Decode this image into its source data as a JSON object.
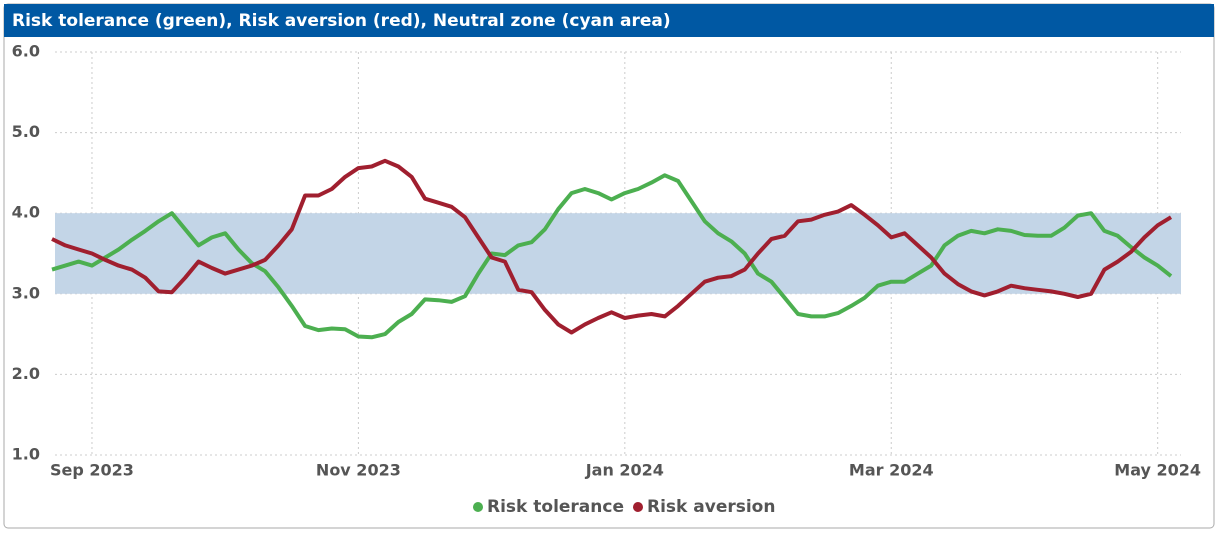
{
  "chart_data": {
    "type": "line",
    "title": "Risk tolerance (green), Risk aversion (red), Neutral zone (cyan area)",
    "categories": [
      null,
      null,
      null,
      "Sep 2023",
      null,
      null,
      null,
      null,
      null,
      null,
      null,
      null,
      null,
      null,
      null,
      null,
      null,
      null,
      null,
      null,
      null,
      null,
      null,
      "Nov 2023",
      null,
      null,
      null,
      null,
      null,
      null,
      null,
      null,
      null,
      null,
      null,
      null,
      null,
      null,
      null,
      null,
      null,
      null,
      null,
      "Jan 2024",
      null,
      null,
      null,
      null,
      null,
      null,
      null,
      null,
      null,
      null,
      null,
      null,
      null,
      null,
      null,
      null,
      null,
      null,
      null,
      "Mar 2024",
      null,
      null,
      null,
      null,
      null,
      null,
      null,
      null,
      null,
      null,
      null,
      null,
      null,
      null,
      null,
      null,
      null,
      null,
      null,
      "May 2024",
      null
    ],
    "series": [
      {
        "name": "Risk tolerance",
        "color": "#4caf50",
        "values": [
          3.3,
          3.35,
          3.4,
          3.35,
          3.45,
          3.55,
          3.67,
          3.78,
          3.9,
          4.0,
          3.8,
          3.6,
          3.7,
          3.75,
          3.55,
          3.38,
          3.28,
          3.08,
          2.85,
          2.6,
          2.55,
          2.57,
          2.56,
          2.47,
          2.46,
          2.5,
          2.65,
          2.75,
          2.93,
          2.92,
          2.9,
          2.97,
          3.25,
          3.5,
          3.48,
          3.6,
          3.64,
          3.8,
          4.05,
          4.25,
          4.3,
          4.25,
          4.17,
          4.25,
          4.3,
          4.38,
          4.47,
          4.4,
          4.15,
          3.9,
          3.75,
          3.65,
          3.5,
          3.25,
          3.15,
          2.95,
          2.75,
          2.72,
          2.72,
          2.76,
          2.85,
          2.95,
          3.1,
          3.15,
          3.15,
          3.25,
          3.35,
          3.6,
          3.72,
          3.78,
          3.75,
          3.8,
          3.78,
          3.73,
          3.72,
          3.72,
          3.82,
          3.97,
          4.0,
          3.78,
          3.72,
          3.58,
          3.45,
          3.35,
          3.22
        ]
      },
      {
        "name": "Risk aversion",
        "color": "#a01f2f",
        "values": [
          3.68,
          3.6,
          3.55,
          3.5,
          3.42,
          3.35,
          3.3,
          3.2,
          3.03,
          3.02,
          3.2,
          3.4,
          3.32,
          3.25,
          3.3,
          3.35,
          3.42,
          3.6,
          3.8,
          4.22,
          4.22,
          4.3,
          4.45,
          4.56,
          4.58,
          4.65,
          4.58,
          4.45,
          4.18,
          4.13,
          4.08,
          3.95,
          3.7,
          3.45,
          3.4,
          3.05,
          3.02,
          2.8,
          2.62,
          2.52,
          2.62,
          2.7,
          2.77,
          2.7,
          2.73,
          2.75,
          2.72,
          2.85,
          3.0,
          3.15,
          3.2,
          3.22,
          3.3,
          3.5,
          3.68,
          3.72,
          3.9,
          3.92,
          3.98,
          4.02,
          4.1,
          3.98,
          3.85,
          3.7,
          3.75,
          3.6,
          3.45,
          3.25,
          3.12,
          3.03,
          2.98,
          3.03,
          3.1,
          3.07,
          3.05,
          3.03,
          3.0,
          2.96,
          3.0,
          3.3,
          3.4,
          3.52,
          3.7,
          3.85,
          3.95
        ]
      }
    ],
    "band": [
      3,
      4
    ],
    "band_color": "#c3d5e7",
    "ylim": [
      1,
      6
    ],
    "yticks": [
      {
        "value": 1,
        "label": "1.0"
      },
      {
        "value": 2,
        "label": "2.0"
      },
      {
        "value": 3,
        "label": "3.0"
      },
      {
        "value": 4,
        "label": "4.0"
      },
      {
        "value": 5,
        "label": "5.0"
      },
      {
        "value": 6,
        "label": "6.0"
      }
    ],
    "grid": true,
    "legend": "bottom"
  }
}
